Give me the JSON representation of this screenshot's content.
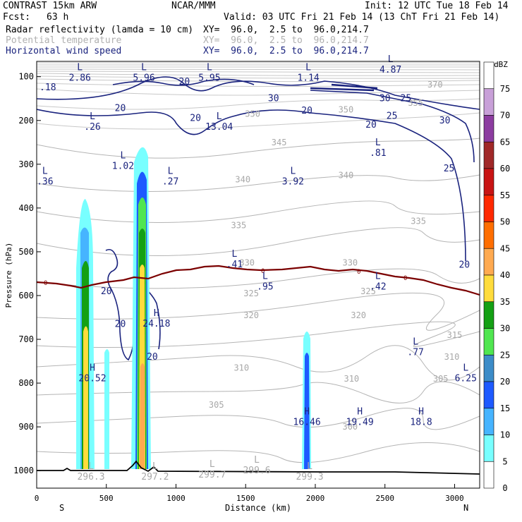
{
  "header": {
    "title": "CONTRAST 15km ARW",
    "center": "NCAR/MMM",
    "init": "Init: 12 UTC Tue 18 Feb 14",
    "fcst_label": "Fcst:",
    "fcst_value": "63 h",
    "valid": "Valid: 03 UTC Fri 21 Feb 14 (13 ChT Fri 21 Feb 14)",
    "fields": [
      {
        "name": "Radar reflectivity (lamda = 10 cm)",
        "xy": "XY=  96.0,  2.5 to  96.0,214.7",
        "color": "#000000"
      },
      {
        "name": "Potential temperature",
        "xy": "XY=  96.0,  2.5 to  96.0,214.7",
        "color": "#b0b0b0"
      },
      {
        "name": "Horizontal wind speed",
        "xy": "XY=  96.0,  2.5 to  96.0,214.7",
        "color": "#1a237e"
      }
    ]
  },
  "chart_data": {
    "type": "cross-section",
    "xlabel": "Distance (km)",
    "ylabel": "Pressure (hPa)",
    "x_ticks": [
      "0",
      "500",
      "1000",
      "1500",
      "2000",
      "2500",
      "3000"
    ],
    "y_ticks": [
      "100",
      "200",
      "300",
      "400",
      "500",
      "600",
      "700",
      "800",
      "900",
      "1000"
    ],
    "xlim": [
      0,
      3180
    ],
    "ylim": [
      1040,
      65
    ],
    "left_end": "S",
    "right_end": "N",
    "colorbar": {
      "unit": "dBZ",
      "levels": [
        "75",
        "70",
        "65",
        "60",
        "55",
        "50",
        "45",
        "40",
        "35",
        "30",
        "25",
        "20",
        "15",
        "10",
        "5",
        "0"
      ],
      "colors": [
        "#ffffff",
        "#c8a0d8",
        "#8c3ca0",
        "#a02828",
        "#c81414",
        "#ff2800",
        "#ff6e00",
        "#ffaa50",
        "#ffdc3c",
        "#14a014",
        "#50e650",
        "#3c8cc8",
        "#1e5aff",
        "#46b4ff",
        "#78ffff",
        "#ffffff"
      ]
    },
    "freezing_level_label": "0",
    "theta_labels": [
      {
        "x": 2860,
        "p": 118,
        "v": "370"
      },
      {
        "x": 2720,
        "p": 160,
        "v": "355"
      },
      {
        "x": 1550,
        "p": 185,
        "v": "350"
      },
      {
        "x": 2220,
        "p": 175,
        "v": "350"
      },
      {
        "x": 1740,
        "p": 250,
        "v": "345"
      },
      {
        "x": 1480,
        "p": 335,
        "v": "340"
      },
      {
        "x": 2220,
        "p": 325,
        "v": "340"
      },
      {
        "x": 1450,
        "p": 440,
        "v": "335"
      },
      {
        "x": 2740,
        "p": 430,
        "v": "335"
      },
      {
        "x": 1510,
        "p": 525,
        "v": "330"
      },
      {
        "x": 2250,
        "p": 525,
        "v": "330"
      },
      {
        "x": 1540,
        "p": 595,
        "v": "325"
      },
      {
        "x": 2380,
        "p": 590,
        "v": "325"
      },
      {
        "x": 1540,
        "p": 645,
        "v": "320"
      },
      {
        "x": 2310,
        "p": 645,
        "v": "320"
      },
      {
        "x": 3000,
        "p": 690,
        "v": "315"
      },
      {
        "x": 2980,
        "p": 740,
        "v": "310"
      },
      {
        "x": 1470,
        "p": 765,
        "v": "310"
      },
      {
        "x": 2260,
        "p": 790,
        "v": "310"
      },
      {
        "x": 2900,
        "p": 790,
        "v": "305"
      },
      {
        "x": 1290,
        "p": 850,
        "v": "305"
      },
      {
        "x": 2250,
        "p": 900,
        "v": "300"
      }
    ],
    "wind_labels": [
      {
        "x": 1060,
        "p": 112,
        "v": "20"
      },
      {
        "x": 1700,
        "p": 150,
        "v": "30"
      },
      {
        "x": 2500,
        "p": 150,
        "v": "30"
      },
      {
        "x": 2650,
        "p": 150,
        "v": "25"
      },
      {
        "x": 600,
        "p": 172,
        "v": "20"
      },
      {
        "x": 1140,
        "p": 195,
        "v": "20"
      },
      {
        "x": 1940,
        "p": 178,
        "v": "20"
      },
      {
        "x": 2400,
        "p": 210,
        "v": "20"
      },
      {
        "x": 2550,
        "p": 190,
        "v": "25"
      },
      {
        "x": 2930,
        "p": 200,
        "v": "30"
      },
      {
        "x": 2960,
        "p": 310,
        "v": "25"
      },
      {
        "x": 3070,
        "p": 530,
        "v": "20"
      },
      {
        "x": 500,
        "p": 590,
        "v": "20"
      },
      {
        "x": 600,
        "p": 665,
        "v": "20"
      },
      {
        "x": 830,
        "p": 740,
        "v": "20"
      }
    ],
    "extrema": [
      {
        "type": "L",
        "x": 310,
        "p": 88,
        "v": "2.86"
      },
      {
        "type": "",
        "x": 80,
        "p": 110,
        "v": ".18"
      },
      {
        "type": "L",
        "x": 770,
        "p": 88,
        "v": "5.96"
      },
      {
        "type": "L",
        "x": 1240,
        "p": 88,
        "v": "5.95"
      },
      {
        "type": "L",
        "x": 1950,
        "p": 88,
        "v": "1.14"
      },
      {
        "type": "L",
        "x": 2540,
        "p": 70,
        "v": "4.87"
      },
      {
        "type": "L",
        "x": 400,
        "p": 200,
        "v": ".26"
      },
      {
        "type": "L",
        "x": 1310,
        "p": 200,
        "v": "13.04"
      },
      {
        "type": "L",
        "x": 2450,
        "p": 260,
        "v": ".81"
      },
      {
        "type": "L",
        "x": 620,
        "p": 290,
        "v": "1.02"
      },
      {
        "type": "L",
        "x": 960,
        "p": 325,
        "v": ".27"
      },
      {
        "type": "L",
        "x": 60,
        "p": 325,
        "v": ".36"
      },
      {
        "type": "L",
        "x": 1840,
        "p": 325,
        "v": "3.92"
      },
      {
        "type": "L",
        "x": 1420,
        "p": 515,
        "v": ".41"
      },
      {
        "type": "L",
        "x": 1640,
        "p": 565,
        "v": ".95"
      },
      {
        "type": "L",
        "x": 2450,
        "p": 565,
        "v": ".42"
      },
      {
        "type": "H",
        "x": 860,
        "p": 650,
        "v": "24.18"
      },
      {
        "type": "L",
        "x": 2720,
        "p": 715,
        "v": ".77"
      },
      {
        "type": "H",
        "x": 400,
        "p": 775,
        "v": "20.52"
      },
      {
        "type": "L",
        "x": 3080,
        "p": 775,
        "v": "6.25"
      },
      {
        "type": "H",
        "x": 1940,
        "p": 875,
        "v": "16.46"
      },
      {
        "type": "H",
        "x": 2320,
        "p": 875,
        "v": "19.49"
      },
      {
        "type": "H",
        "x": 2760,
        "p": 875,
        "v": "18.8"
      },
      {
        "type": "L",
        "x": 390,
        "p": 1000,
        "v": "296.3"
      },
      {
        "type": "L",
        "x": 850,
        "p": 1000,
        "v": "297.2"
      },
      {
        "type": "L",
        "x": 1260,
        "p": 995,
        "v": "299.7"
      },
      {
        "type": "L",
        "x": 1580,
        "p": 985,
        "v": "299.6"
      },
      {
        "type": "L",
        "x": 1960,
        "p": 1000,
        "v": "299.3"
      }
    ],
    "cells": [
      {
        "x": 360,
        "w": 140,
        "top": 380,
        "bottom": 1010
      },
      {
        "x": 510,
        "w": 40,
        "top": 720,
        "bottom": 1010
      },
      {
        "x": 770,
        "w": 160,
        "top": 225,
        "bottom": 1010
      },
      {
        "x": 1945,
        "w": 70,
        "top": 670,
        "bottom": 1010
      }
    ]
  }
}
